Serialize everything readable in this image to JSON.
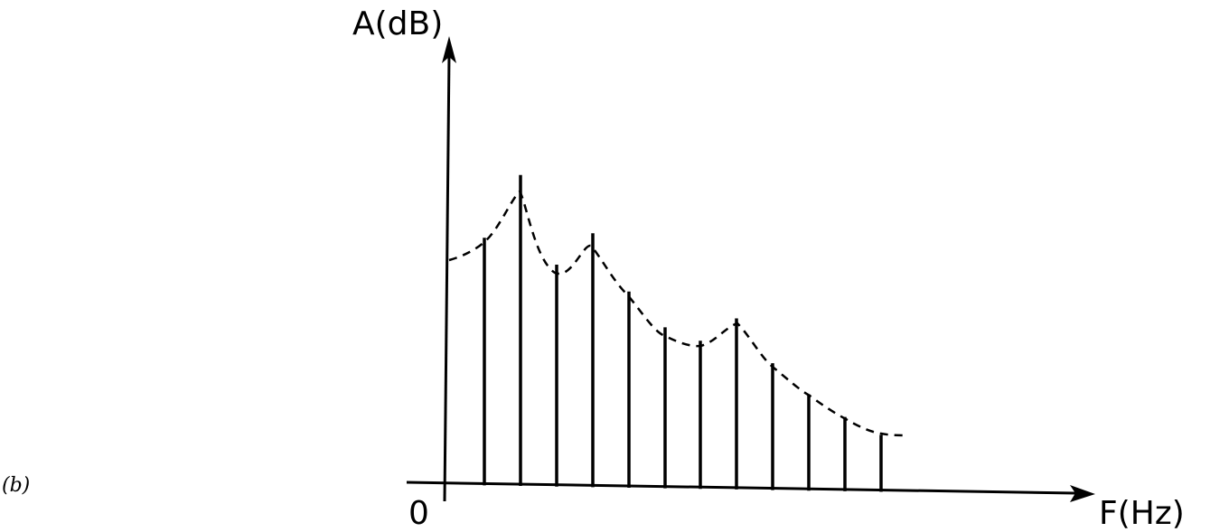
{
  "caption": "(b)",
  "axes": {
    "y_label": "A(dB)",
    "x_label": "F(Hz)",
    "origin_label": "0"
  },
  "diagram_data": {
    "description_type": "harmonic line spectrum with formant envelope",
    "harmonics": [
      {
        "n": 1,
        "level": 0.55
      },
      {
        "n": 2,
        "level": 0.69
      },
      {
        "n": 3,
        "level": 0.49
      },
      {
        "n": 4,
        "level": 0.56
      },
      {
        "n": 5,
        "level": 0.43
      },
      {
        "n": 6,
        "level": 0.35
      },
      {
        "n": 7,
        "level": 0.32
      },
      {
        "n": 8,
        "level": 0.37
      },
      {
        "n": 9,
        "level": 0.27
      },
      {
        "n": 10,
        "level": 0.2
      },
      {
        "n": 11,
        "level": 0.15
      },
      {
        "n": 12,
        "level": 0.11
      }
    ],
    "envelope": {
      "style": "dashed",
      "start_level": 0.52,
      "end_level": 0.11
    }
  }
}
